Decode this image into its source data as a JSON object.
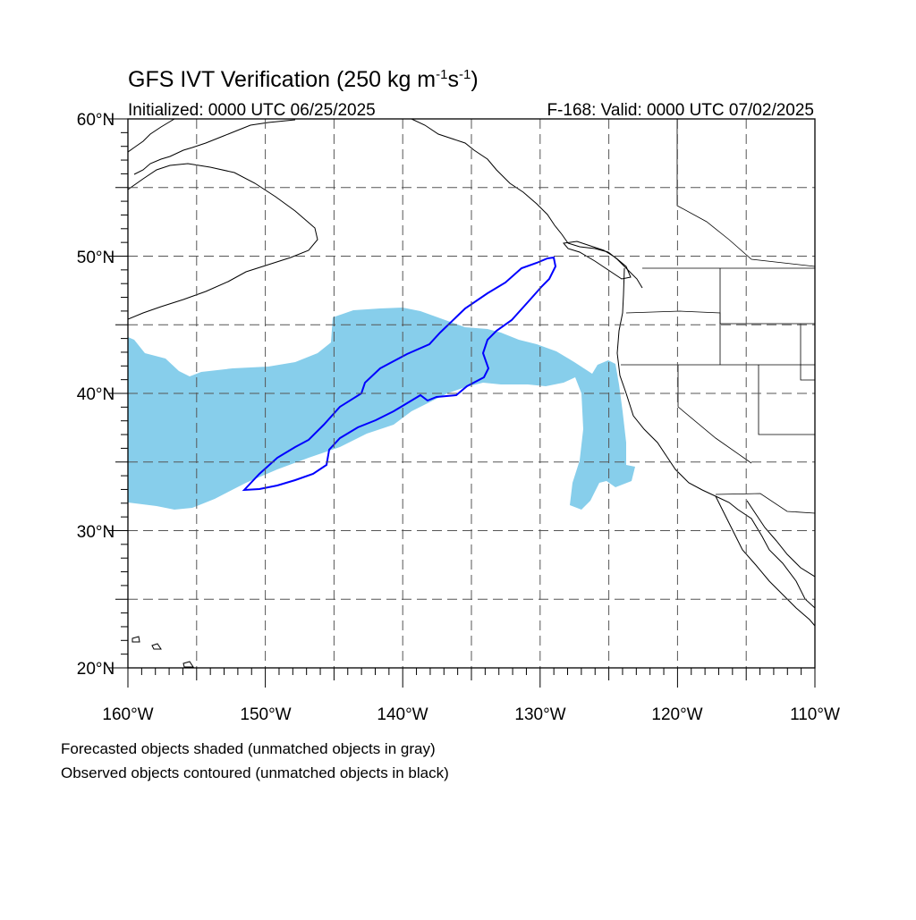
{
  "title": "GFS IVT Verification (250 kg m",
  "title_sup1": "-1",
  "title_mid": "s",
  "title_sup2": "-1",
  "title_end": ")",
  "initialized": "Initialized: 0000 UTC 06/25/2025",
  "valid": "F-168: Valid: 0000 UTC 07/02/2025",
  "lat_labels": [
    "60°N",
    "50°N",
    "40°N",
    "30°N",
    "20°N"
  ],
  "lon_labels": [
    "160°W",
    "150°W",
    "140°W",
    "130°W",
    "120°W",
    "110°W"
  ],
  "note1": "Forecasted objects shaded (unmatched objects in gray)",
  "note2": "Observed objects contoured (unmatched objects in black)",
  "colors": {
    "forecast_matched": "#87ceeb",
    "observed_matched": "#0000ff",
    "observed_unmatched": "#000000"
  },
  "map_extent": {
    "lon_min": -160,
    "lon_max": -110,
    "lat_min": 20,
    "lat_max": 60
  }
}
